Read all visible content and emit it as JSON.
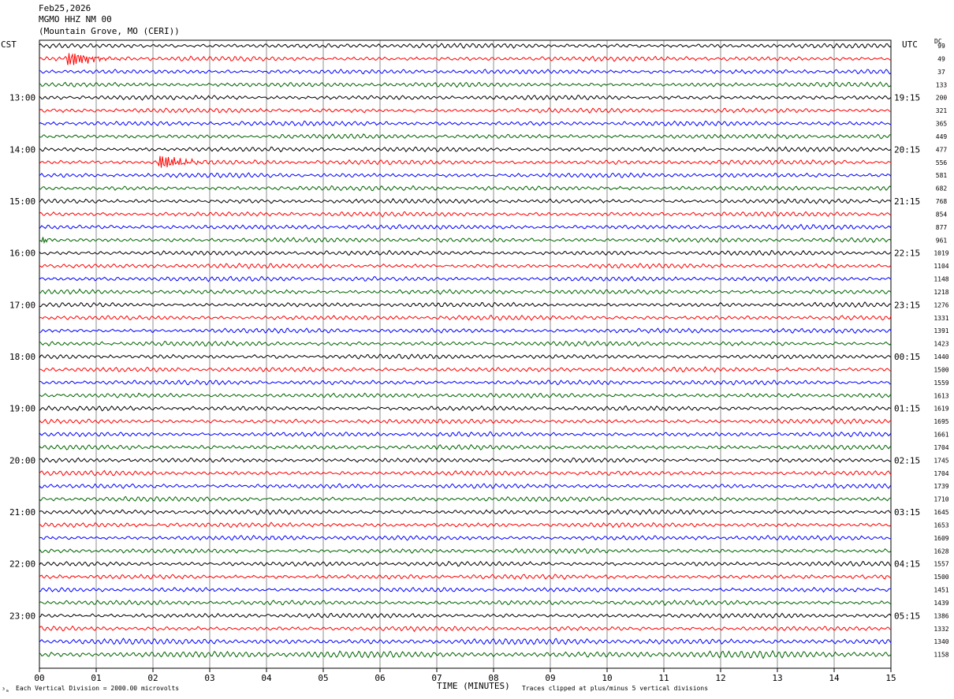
{
  "header": {
    "date": "Feb25,2026",
    "station": "MGMO HHZ NM 00",
    "location": "(Mountain Grove, MO (CERI))"
  },
  "labels": {
    "left_timezone": "CST",
    "right_timezone": "UTC",
    "dc_header": "DC",
    "xlabel": "TIME (MINUTES)",
    "scale_note": "Each Vertical Division = 2000.00 microvolts",
    "clip_note": "Traces clipped at plus/minus 5 vertical divisions",
    "corner_mark": "³ₘ"
  },
  "chart_data": {
    "type": "line",
    "title": "",
    "xlabel": "TIME (MINUTES)",
    "ylabel": "",
    "xlim": [
      0,
      15
    ],
    "x_ticks": [
      "00",
      "01",
      "02",
      "03",
      "04",
      "05",
      "06",
      "07",
      "08",
      "09",
      "10",
      "11",
      "12",
      "13",
      "14",
      "15"
    ],
    "grid": true,
    "trace_count": 48,
    "trace_interval_minutes": 15,
    "trace_colors": [
      "#000000",
      "#ff0000",
      "#0000ff",
      "#006400"
    ],
    "left_hour_labels": [
      "13:00",
      "14:00",
      "15:00",
      "16:00",
      "17:00",
      "18:00",
      "19:00",
      "20:00",
      "21:00",
      "22:00",
      "23:00"
    ],
    "right_hour_labels": [
      "19:15",
      "20:15",
      "21:15",
      "22:15",
      "23:15",
      "00:15",
      "01:15",
      "02:15",
      "03:15",
      "04:15",
      "05:15"
    ],
    "dc_offsets": [
      "99",
      "49",
      "37",
      "133",
      "200",
      "321",
      "365",
      "449",
      "477",
      "556",
      "581",
      "682",
      "768",
      "854",
      "877",
      "961",
      "1019",
      "1104",
      "1148",
      "1218",
      "1276",
      "1331",
      "1391",
      "1423",
      "1440",
      "1500",
      "1559",
      "1613",
      "1619",
      "1695",
      "1661",
      "1704",
      "1745",
      "1704",
      "1739",
      "1710",
      "1645",
      "1653",
      "1609",
      "1628",
      "1557",
      "1500",
      "1451",
      "1439",
      "1386",
      "1332",
      "1340",
      "1158"
    ],
    "events": [
      {
        "trace": 1,
        "minute": 0.6,
        "note": "burst"
      },
      {
        "trace": 9,
        "minute": 2.2,
        "note": "burst"
      },
      {
        "trace": 15,
        "minute": 0.05,
        "note": "spike"
      }
    ]
  }
}
